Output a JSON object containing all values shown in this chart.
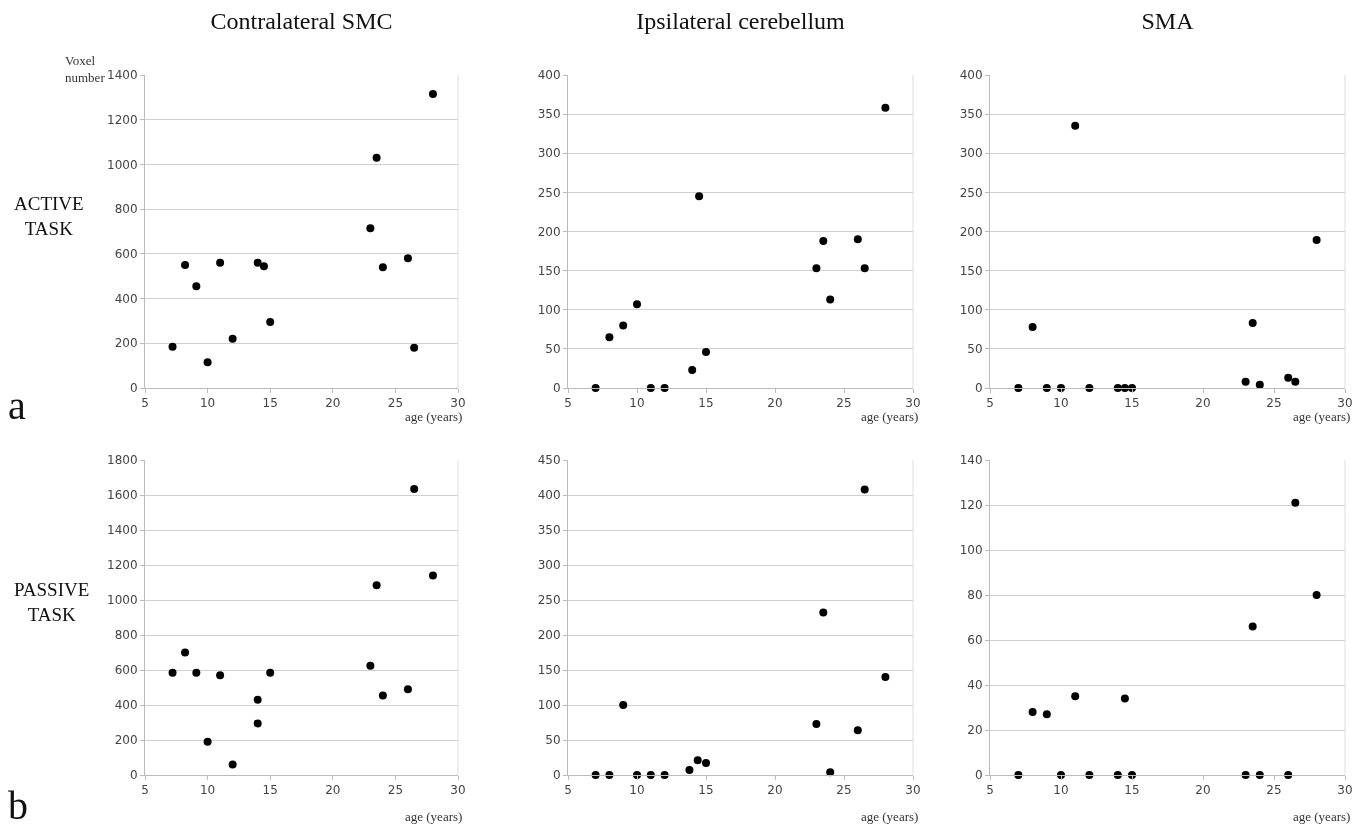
{
  "chart_data": [
    {
      "type": "scatter",
      "title": "Contralateral SMC",
      "ylabel": "Voxel number",
      "xlabel": "age (years)",
      "annotations": [
        "ACTIVE TASK",
        "a"
      ],
      "marker": "circle",
      "grid": "y",
      "xlim": [
        5,
        30
      ],
      "xticks": [
        5,
        10,
        15,
        20,
        25,
        30
      ],
      "ylim": [
        0,
        1400
      ],
      "yticks": [
        0,
        200,
        400,
        600,
        800,
        1000,
        1200,
        1400
      ],
      "series": [
        {
          "color": "#000000",
          "x": [
            7.2,
            8.2,
            9.1,
            10,
            11,
            12,
            14,
            14.5,
            15,
            23,
            23.5,
            24,
            26,
            26.5,
            28
          ],
          "values": [
            185,
            550,
            455,
            115,
            560,
            220,
            560,
            545,
            295,
            715,
            1030,
            540,
            580,
            180,
            1315
          ]
        }
      ]
    },
    {
      "type": "scatter",
      "title": "Ipsilateral cerebellum",
      "xlabel": "age (years)",
      "marker": "circle",
      "grid": "y",
      "xlim": [
        5,
        30
      ],
      "xticks": [
        5,
        10,
        15,
        20,
        25,
        30
      ],
      "ylim": [
        0,
        400
      ],
      "yticks": [
        0,
        50,
        100,
        150,
        200,
        250,
        300,
        350,
        400
      ],
      "series": [
        {
          "color": "#000000",
          "x": [
            7,
            8,
            9,
            10,
            11,
            12,
            14,
            14.5,
            15,
            23,
            23.5,
            24,
            26,
            26.5,
            28
          ],
          "values": [
            0,
            65,
            80,
            107,
            0,
            0,
            23,
            245,
            46,
            153,
            188,
            113,
            190,
            153,
            358
          ]
        }
      ]
    },
    {
      "type": "scatter",
      "title": "SMA",
      "xlabel": "age (years)",
      "marker": "circle",
      "grid": "y",
      "xlim": [
        5,
        30
      ],
      "xticks": [
        5,
        10,
        15,
        20,
        25,
        30
      ],
      "ylim": [
        0,
        400
      ],
      "yticks": [
        0,
        50,
        100,
        150,
        200,
        250,
        300,
        350,
        400
      ],
      "series": [
        {
          "color": "#000000",
          "x": [
            7,
            8,
            9,
            10,
            11,
            12,
            14,
            14.5,
            15,
            23,
            23.5,
            24,
            26,
            26.5,
            28
          ],
          "values": [
            0,
            78,
            0,
            0,
            335,
            0,
            0,
            0,
            0,
            8,
            83,
            4,
            13,
            8,
            189
          ]
        }
      ]
    },
    {
      "type": "scatter",
      "xlabel": "age (years)",
      "annotations": [
        "PASSIVE TASK",
        "b"
      ],
      "marker": "circle",
      "grid": "y",
      "xlim": [
        5,
        30
      ],
      "xticks": [
        5,
        10,
        15,
        20,
        25,
        30
      ],
      "ylim": [
        0,
        1800
      ],
      "yticks": [
        0,
        200,
        400,
        600,
        800,
        1000,
        1200,
        1400,
        1600,
        1800
      ],
      "series": [
        {
          "color": "#000000",
          "x": [
            7.2,
            8.2,
            9.1,
            10,
            11,
            12,
            14,
            14,
            15,
            23,
            23.5,
            24,
            26,
            26.5,
            28
          ],
          "values": [
            585,
            700,
            585,
            190,
            570,
            60,
            430,
            295,
            585,
            625,
            1085,
            455,
            490,
            1635,
            1140
          ]
        }
      ]
    },
    {
      "type": "scatter",
      "xlabel": "age (years)",
      "marker": "circle",
      "grid": "y",
      "xlim": [
        5,
        30
      ],
      "xticks": [
        5,
        10,
        15,
        20,
        25,
        30
      ],
      "ylim": [
        0,
        450
      ],
      "yticks": [
        0,
        50,
        100,
        150,
        200,
        250,
        300,
        350,
        400,
        450
      ],
      "series": [
        {
          "color": "#000000",
          "x": [
            7,
            8,
            9,
            10,
            11,
            12,
            13.8,
            14.4,
            15,
            23,
            23.5,
            24,
            26,
            26.5,
            28
          ],
          "values": [
            0,
            0,
            100,
            0,
            0,
            0,
            7,
            21,
            17,
            73,
            232,
            4,
            64,
            408,
            140
          ]
        }
      ]
    },
    {
      "type": "scatter",
      "xlabel": "age (years)",
      "marker": "circle",
      "grid": "y",
      "xlim": [
        5,
        30
      ],
      "xticks": [
        5,
        10,
        15,
        20,
        25,
        30
      ],
      "ylim": [
        0,
        140
      ],
      "yticks": [
        0,
        20,
        40,
        60,
        80,
        100,
        120,
        140
      ],
      "series": [
        {
          "color": "#000000",
          "x": [
            7,
            8,
            9,
            10,
            11,
            12,
            14,
            14.5,
            15,
            23,
            23.5,
            24,
            26,
            26.5,
            28
          ],
          "values": [
            0,
            28,
            27,
            0,
            35,
            0,
            0,
            34,
            0,
            0,
            66,
            0,
            0,
            121,
            80
          ]
        }
      ]
    }
  ]
}
